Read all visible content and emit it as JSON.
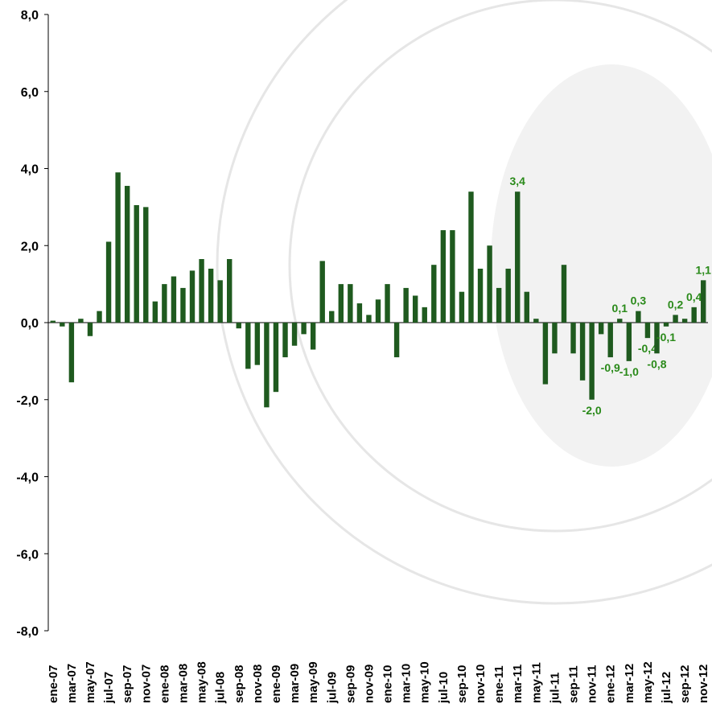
{
  "chart_data": {
    "type": "bar",
    "categories": [
      "ene-07",
      null,
      "mar-07",
      null,
      "may-07",
      null,
      "jul-07",
      null,
      "sep-07",
      null,
      "nov-07",
      null,
      "ene-08",
      null,
      "mar-08",
      null,
      "may-08",
      null,
      "jul-08",
      null,
      "sep-08",
      null,
      "nov-08",
      null,
      "ene-09",
      null,
      "mar-09",
      null,
      "may-09",
      null,
      "jul-09",
      null,
      "sep-09",
      null,
      "nov-09",
      null,
      "ene-10",
      null,
      "mar-10",
      null,
      "may-10",
      null,
      "jul-10",
      null,
      "sep-10",
      null,
      "nov-10",
      null,
      "ene-11",
      null,
      "mar-11",
      null,
      "may-11",
      null,
      "jul-11",
      null,
      "sep-11",
      null,
      "nov-11",
      null,
      "ene-12",
      null,
      "mar-12",
      null,
      "may-12",
      null,
      "jul-12",
      null,
      "sep-12",
      null,
      "nov-12"
    ],
    "values": [
      0.05,
      -0.1,
      -1.55,
      0.1,
      -0.35,
      0.3,
      2.1,
      3.9,
      3.55,
      3.05,
      3.0,
      0.55,
      1.0,
      1.2,
      0.9,
      1.35,
      1.65,
      1.4,
      1.1,
      1.65,
      -0.15,
      -1.2,
      -1.1,
      -2.2,
      -1.8,
      -0.9,
      -0.6,
      -0.3,
      -0.7,
      1.6,
      0.3,
      1.0,
      1.0,
      0.5,
      0.2,
      0.6,
      1.0,
      -0.9,
      0.9,
      0.7,
      0.4,
      1.5,
      2.4,
      2.4,
      0.8,
      3.4,
      1.4,
      2.0,
      0.9,
      1.4,
      3.4,
      0.8,
      0.1,
      -1.6,
      -0.8,
      1.5,
      -0.8,
      -1.5,
      -2.0,
      -0.3,
      -0.9,
      0.1,
      -1.0,
      0.3,
      -0.4,
      -0.8,
      -0.1,
      0.2,
      0.1,
      0.4,
      1.1
    ],
    "value_labels": [
      null,
      null,
      null,
      null,
      null,
      null,
      null,
      null,
      null,
      null,
      null,
      null,
      null,
      null,
      null,
      null,
      null,
      null,
      null,
      null,
      null,
      null,
      null,
      null,
      null,
      null,
      null,
      null,
      null,
      null,
      null,
      null,
      null,
      null,
      null,
      null,
      null,
      null,
      null,
      null,
      null,
      null,
      null,
      null,
      null,
      null,
      null,
      null,
      null,
      null,
      "3,4",
      null,
      null,
      null,
      null,
      null,
      null,
      null,
      "-2,0",
      null,
      "-0,9",
      "0,1",
      "-1,0",
      "0,3",
      "-0,4",
      "-0,8",
      "-0,1",
      "0,2",
      null,
      "0,4",
      "1,1"
    ],
    "color": "#1f5a1f",
    "label_color": "#2a8a1a",
    "ylim": [
      -8,
      8
    ],
    "yticks": [
      {
        "value": -8,
        "label": "-8,0"
      },
      {
        "value": -6,
        "label": "-6,0"
      },
      {
        "value": -4,
        "label": "-4,0"
      },
      {
        "value": -2,
        "label": "-2,0"
      },
      {
        "value": 0,
        "label": "0,0"
      },
      {
        "value": 2,
        "label": "2,0"
      },
      {
        "value": 4,
        "label": "4,0"
      },
      {
        "value": 6,
        "label": "6,0"
      },
      {
        "value": 8,
        "label": "8,0"
      }
    ]
  }
}
